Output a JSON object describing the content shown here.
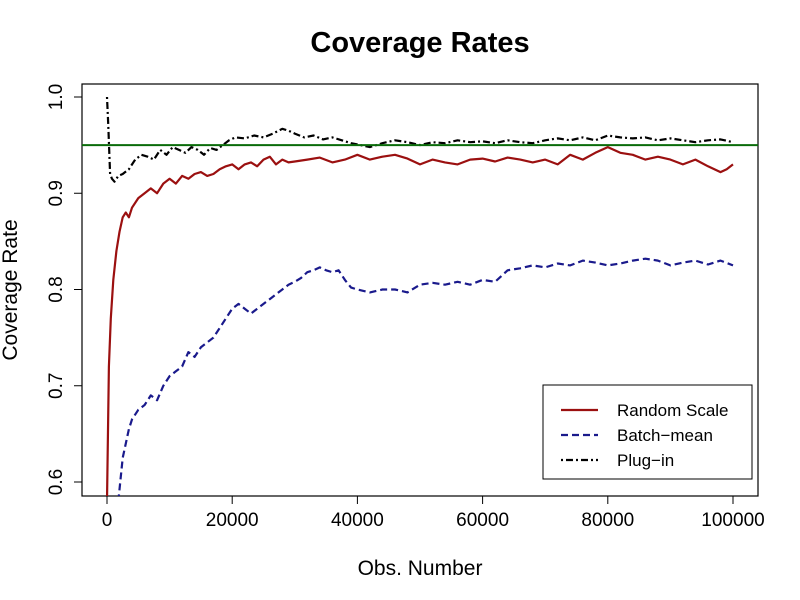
{
  "chart_data": {
    "type": "line",
    "title": "Coverage Rates",
    "xlabel": "Obs. Number",
    "ylabel": "Coverage Rate",
    "xlim": [
      0,
      100000
    ],
    "ylim": [
      0.58,
      1.01
    ],
    "xticks": [
      0,
      20000,
      40000,
      60000,
      80000,
      100000
    ],
    "yticks": [
      0.6,
      0.7,
      0.8,
      0.9,
      1.0
    ],
    "xtick_labels": [
      "0",
      "20000",
      "40000",
      "60000",
      "80000",
      "100000"
    ],
    "ytick_labels": [
      "0.6",
      "0.7",
      "0.8",
      "0.9",
      "1.0"
    ],
    "grid": false,
    "legend_position": "bottom-right",
    "reference_line": {
      "y": 0.95,
      "color": "#0a6b0a"
    },
    "series": [
      {
        "name": "Random Scale",
        "color": "#9b1010",
        "dash": "solid",
        "x": [
          0,
          300,
          600,
          1000,
          1500,
          2000,
          2500,
          3000,
          3500,
          4000,
          5000,
          6000,
          7000,
          8000,
          9000,
          10000,
          11000,
          12000,
          13000,
          14000,
          15000,
          16000,
          17000,
          18000,
          19000,
          20000,
          21000,
          22000,
          23000,
          24000,
          25000,
          26000,
          27000,
          28000,
          29000,
          30000,
          32000,
          34000,
          36000,
          38000,
          40000,
          42000,
          44000,
          46000,
          48000,
          50000,
          52000,
          54000,
          56000,
          58000,
          60000,
          62000,
          64000,
          66000,
          68000,
          70000,
          72000,
          74000,
          76000,
          78000,
          80000,
          82000,
          84000,
          86000,
          88000,
          90000,
          92000,
          94000,
          96000,
          98000,
          99000,
          100000
        ],
        "y": [
          0.58,
          0.72,
          0.77,
          0.81,
          0.84,
          0.86,
          0.875,
          0.88,
          0.875,
          0.885,
          0.895,
          0.9,
          0.905,
          0.9,
          0.91,
          0.915,
          0.91,
          0.918,
          0.915,
          0.92,
          0.922,
          0.918,
          0.92,
          0.925,
          0.928,
          0.93,
          0.925,
          0.93,
          0.932,
          0.928,
          0.935,
          0.938,
          0.93,
          0.935,
          0.932,
          0.933,
          0.935,
          0.937,
          0.932,
          0.935,
          0.94,
          0.935,
          0.938,
          0.94,
          0.936,
          0.93,
          0.935,
          0.932,
          0.93,
          0.935,
          0.936,
          0.933,
          0.937,
          0.935,
          0.932,
          0.935,
          0.93,
          0.94,
          0.935,
          0.942,
          0.948,
          0.942,
          0.94,
          0.935,
          0.938,
          0.935,
          0.93,
          0.935,
          0.928,
          0.922,
          0.925,
          0.93
        ]
      },
      {
        "name": "Batch−mean",
        "color": "#1a1a8c",
        "dash": "dashed",
        "x": [
          1800,
          2500,
          3000,
          3500,
          4000,
          5000,
          6000,
          7000,
          8000,
          9000,
          10000,
          11000,
          12000,
          13000,
          14000,
          15000,
          16000,
          17000,
          18000,
          19000,
          20000,
          21000,
          22000,
          23000,
          24000,
          25000,
          26000,
          27000,
          28000,
          29000,
          30000,
          31000,
          32000,
          33000,
          34000,
          35000,
          36000,
          37000,
          38000,
          39000,
          40000,
          42000,
          44000,
          46000,
          48000,
          50000,
          52000,
          54000,
          56000,
          58000,
          60000,
          62000,
          64000,
          66000,
          68000,
          70000,
          72000,
          74000,
          76000,
          78000,
          80000,
          82000,
          84000,
          86000,
          88000,
          90000,
          92000,
          94000,
          96000,
          98000,
          100000
        ],
        "y": [
          0.58,
          0.625,
          0.64,
          0.655,
          0.665,
          0.675,
          0.68,
          0.69,
          0.685,
          0.7,
          0.71,
          0.715,
          0.72,
          0.735,
          0.73,
          0.74,
          0.745,
          0.75,
          0.76,
          0.77,
          0.78,
          0.785,
          0.78,
          0.775,
          0.78,
          0.785,
          0.79,
          0.795,
          0.8,
          0.805,
          0.808,
          0.812,
          0.818,
          0.82,
          0.823,
          0.82,
          0.818,
          0.82,
          0.81,
          0.802,
          0.8,
          0.797,
          0.8,
          0.8,
          0.797,
          0.805,
          0.807,
          0.805,
          0.808,
          0.805,
          0.81,
          0.808,
          0.82,
          0.822,
          0.825,
          0.823,
          0.827,
          0.825,
          0.83,
          0.828,
          0.825,
          0.827,
          0.83,
          0.832,
          0.83,
          0.825,
          0.828,
          0.83,
          0.826,
          0.83,
          0.825
        ]
      },
      {
        "name": "Plug−in",
        "color": "#000000",
        "dash": "dot-dash",
        "x": [
          0,
          200,
          500,
          800,
          1200,
          1800,
          2500,
          3500,
          4500,
          5500,
          6500,
          7500,
          8500,
          9500,
          10500,
          11500,
          12500,
          13500,
          14500,
          15500,
          16500,
          17500,
          18500,
          19500,
          20500,
          22000,
          23500,
          25000,
          26500,
          28000,
          29000,
          30000,
          31500,
          33000,
          34500,
          36000,
          37500,
          39000,
          40500,
          42000,
          44000,
          46000,
          48000,
          50000,
          52000,
          54000,
          56000,
          58000,
          60000,
          62000,
          64000,
          66000,
          68000,
          70000,
          72000,
          74000,
          76000,
          78000,
          80000,
          82000,
          84000,
          86000,
          88000,
          90000,
          92000,
          94000,
          96000,
          98000,
          100000
        ],
        "y": [
          1.0,
          0.97,
          0.92,
          0.915,
          0.912,
          0.918,
          0.92,
          0.925,
          0.935,
          0.94,
          0.938,
          0.935,
          0.945,
          0.94,
          0.948,
          0.945,
          0.942,
          0.948,
          0.945,
          0.94,
          0.947,
          0.945,
          0.95,
          0.955,
          0.958,
          0.957,
          0.96,
          0.958,
          0.962,
          0.967,
          0.965,
          0.962,
          0.958,
          0.96,
          0.956,
          0.958,
          0.955,
          0.952,
          0.95,
          0.948,
          0.952,
          0.955,
          0.953,
          0.95,
          0.953,
          0.952,
          0.955,
          0.953,
          0.954,
          0.952,
          0.955,
          0.953,
          0.952,
          0.955,
          0.957,
          0.955,
          0.958,
          0.955,
          0.96,
          0.958,
          0.957,
          0.958,
          0.955,
          0.957,
          0.955,
          0.953,
          0.955,
          0.956,
          0.953
        ]
      }
    ]
  }
}
